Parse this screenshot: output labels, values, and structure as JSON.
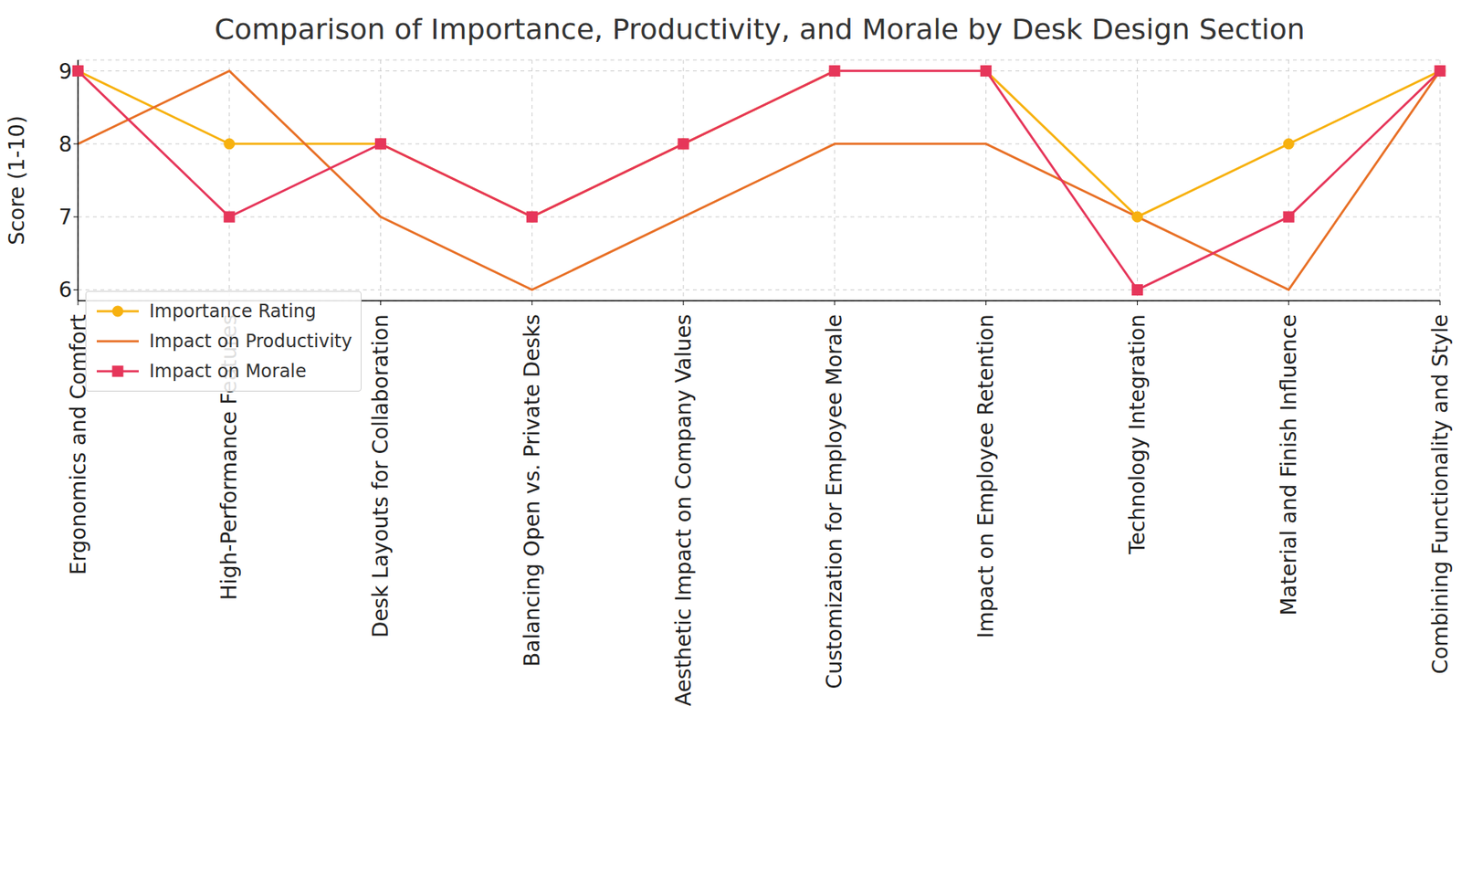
{
  "chart_data": {
    "type": "line",
    "title": "Comparison of Importance, Productivity, and Morale by Desk Design Section",
    "y_label": "Score (1-10)",
    "categories": [
      "Ergonomics and Comfort",
      "High-Performance Features",
      "Desk Layouts for Collaboration",
      "Balancing Open vs. Private Desks",
      "Aesthetic Impact on Company Values",
      "Customization for Employee Morale",
      "Impact on Employee Retention",
      "Technology Integration",
      "Material and Finish Influence",
      "Combining Functionality and Style"
    ],
    "series": [
      {
        "name": "Importance Rating",
        "color": "#f7b10f",
        "marker": "circle",
        "line_style": "solid",
        "values": [
          9,
          8,
          8,
          7,
          8,
          9,
          9,
          7,
          8,
          9
        ]
      },
      {
        "name": "Impact on Productivity",
        "color": "#e87026",
        "marker": "none",
        "line_style": "solid",
        "values": [
          8,
          9,
          7,
          6,
          7,
          8,
          8,
          7,
          6,
          9
        ]
      },
      {
        "name": "Impact on Morale",
        "color": "#e6365a",
        "marker": "square",
        "line_style": "solid",
        "values": [
          9,
          7,
          8,
          7,
          8,
          9,
          9,
          6,
          7,
          9
        ]
      }
    ],
    "ylim": [
      5.85,
      9.15
    ],
    "yticks": [
      6,
      7,
      8,
      9
    ],
    "grid": true,
    "legend": "lower left"
  }
}
